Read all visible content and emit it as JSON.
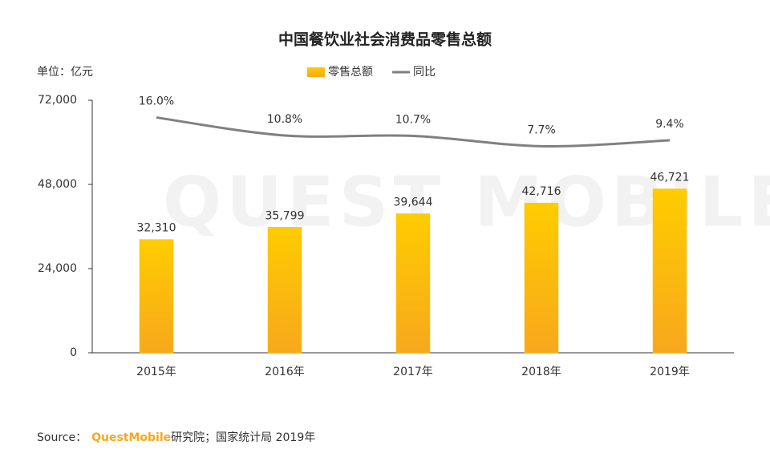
{
  "chart_data": {
    "type": "bar_line",
    "title": "中国餐饮业社会消费品零售总额",
    "unit_label": "单位：亿元",
    "watermark": "QUEST MOBILE",
    "source_prefix": "Source：",
    "source_brand": "QuestMobile",
    "source_rest": "研究院；国家统计局 2019年",
    "categories": [
      "2015年",
      "2016年",
      "2017年",
      "2018年",
      "2019年"
    ],
    "series": [
      {
        "name": "零售总额",
        "type": "bar",
        "color": "#ffc000",
        "values": [
          32310,
          35799,
          39644,
          42716,
          46721
        ],
        "value_labels": [
          "32,310",
          "35,799",
          "39,644",
          "42,716",
          "46,721"
        ]
      },
      {
        "name": "同比",
        "type": "line",
        "axis": "y2",
        "color": "#808080",
        "values": [
          16.0,
          10.8,
          10.7,
          7.7,
          9.4
        ],
        "value_labels": [
          "16.0%",
          "10.8%",
          "10.7%",
          "7.7%",
          "9.4%"
        ]
      }
    ],
    "ylim": [
      0,
      72000
    ],
    "yticks": [
      0,
      {
        "value": 24000,
        "label": "24,000"
      },
      {
        "value": 48000,
        "label": "48,000"
      },
      {
        "value": 72000,
        "label": "72,000"
      }
    ],
    "y2lim": [
      -52,
      21
    ],
    "legend": "top"
  }
}
